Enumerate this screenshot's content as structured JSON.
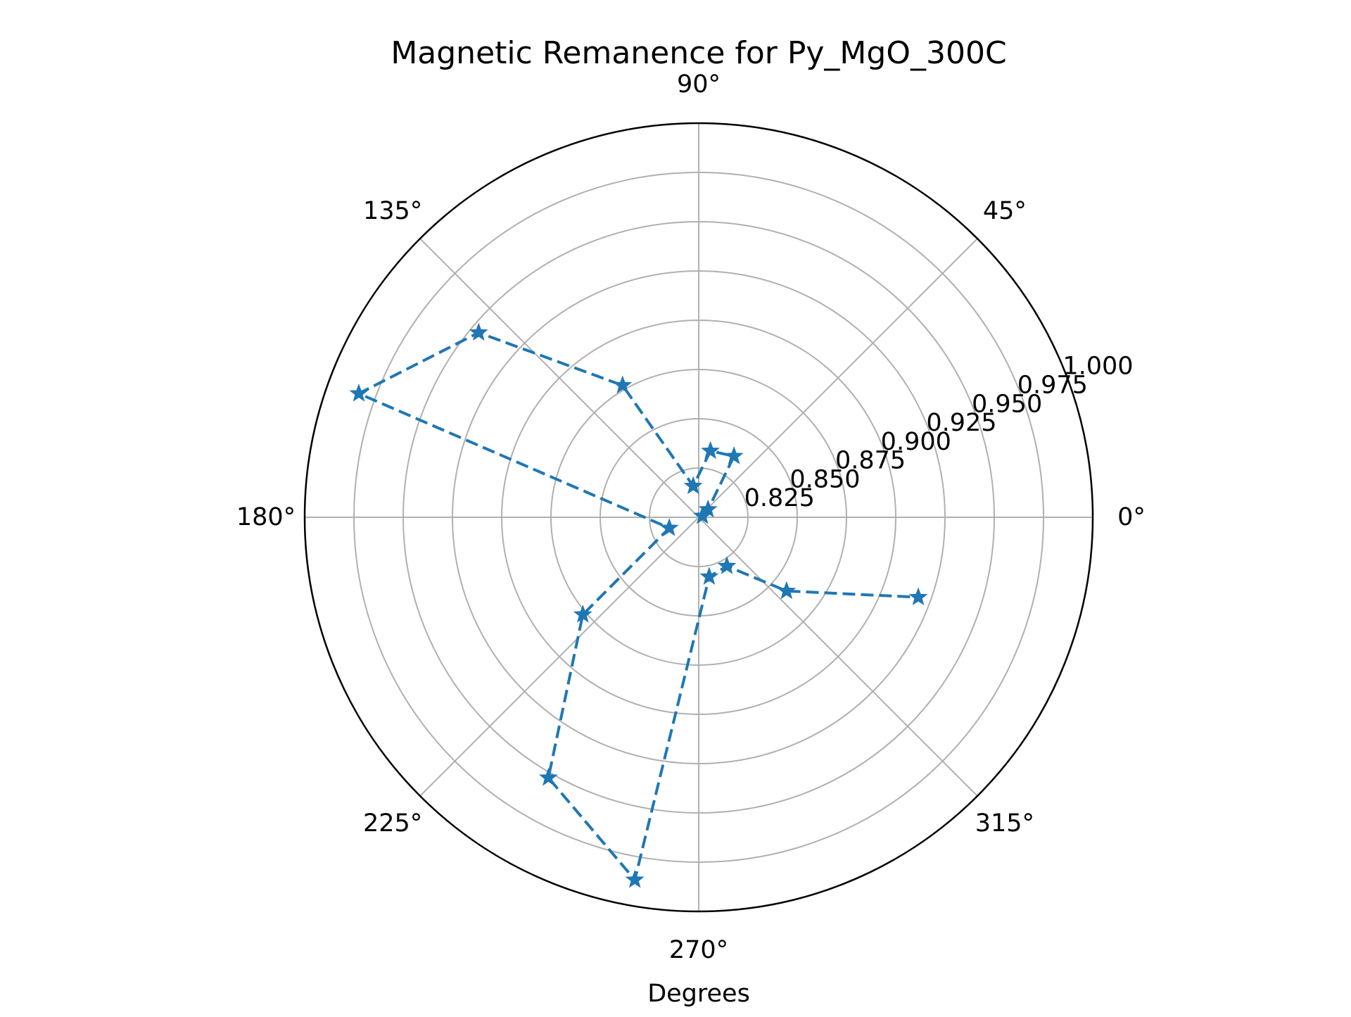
{
  "chart_data": {
    "type": "polar",
    "title": "Magnetic Remanence for Py_MgO_300C",
    "xlabel": "Degrees",
    "theta_ticks": [
      {
        "deg": 0,
        "label": "0°"
      },
      {
        "deg": 45,
        "label": "45°"
      },
      {
        "deg": 90,
        "label": "90°"
      },
      {
        "deg": 135,
        "label": "135°"
      },
      {
        "deg": 180,
        "label": "180°"
      },
      {
        "deg": 225,
        "label": "225°"
      },
      {
        "deg": 270,
        "label": "270°"
      },
      {
        "deg": 315,
        "label": "315°"
      }
    ],
    "r_ticks": [
      {
        "value": 0.825,
        "label": "0.825"
      },
      {
        "value": 0.85,
        "label": "0.850"
      },
      {
        "value": 0.875,
        "label": "0.875"
      },
      {
        "value": 0.9,
        "label": "0.900"
      },
      {
        "value": 0.925,
        "label": "0.925"
      },
      {
        "value": 0.95,
        "label": "0.950"
      },
      {
        "value": 0.975,
        "label": "0.975"
      },
      {
        "value": 1.0,
        "label": "1.000"
      }
    ],
    "rlim": [
      0.8,
      1.0
    ],
    "r_label_angle_deg": 22.5,
    "grid": true,
    "line_style": "dashed",
    "marker": "star",
    "color": "#1f77b4",
    "series": [
      {
        "theta_deg": [
          20,
          40,
          60,
          80,
          100,
          120,
          140,
          160,
          200,
          220,
          240,
          260,
          280,
          300,
          320,
          340
        ],
        "r": [
          0.802,
          0.8062,
          0.8358,
          0.8342,
          0.8161,
          0.8773,
          0.9458,
          0.9836,
          0.8159,
          0.8768,
          0.9526,
          0.9868,
          0.8306,
          0.8286,
          0.8582,
          0.9186
        ]
      }
    ]
  }
}
